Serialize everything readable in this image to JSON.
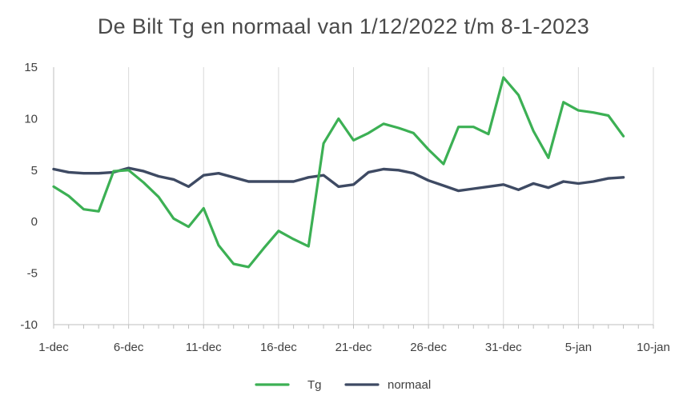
{
  "chart_data": {
    "type": "line",
    "title": "De Bilt Tg en normaal van 1/12/2022 t/m 8-1-2023",
    "xlabel": "",
    "ylabel": "",
    "x_ticks": [
      "1-dec",
      "6-dec",
      "11-dec",
      "16-dec",
      "21-dec",
      "26-dec",
      "31-dec",
      "5-jan",
      "10-jan"
    ],
    "x": [
      "1-dec",
      "2-dec",
      "3-dec",
      "4-dec",
      "5-dec",
      "6-dec",
      "7-dec",
      "8-dec",
      "9-dec",
      "10-dec",
      "11-dec",
      "12-dec",
      "13-dec",
      "14-dec",
      "15-dec",
      "16-dec",
      "17-dec",
      "18-dec",
      "19-dec",
      "20-dec",
      "21-dec",
      "22-dec",
      "23-dec",
      "24-dec",
      "25-dec",
      "26-dec",
      "27-dec",
      "28-dec",
      "29-dec",
      "30-dec",
      "31-dec",
      "1-jan",
      "2-jan",
      "3-jan",
      "4-jan",
      "5-jan",
      "6-jan",
      "7-jan",
      "8-jan"
    ],
    "y_ticks": [
      15,
      10,
      5,
      0,
      -5,
      -10
    ],
    "ylim": [
      -10,
      15
    ],
    "grid": "vertical",
    "legend_position": "bottom",
    "series": [
      {
        "name": "Tg",
        "color": "#3cb054",
        "values": [
          3.4,
          2.5,
          1.2,
          1.0,
          4.9,
          5.0,
          3.8,
          2.4,
          0.3,
          -0.5,
          1.3,
          -2.3,
          -4.1,
          -4.4,
          -2.6,
          -0.9,
          -1.7,
          -2.4,
          7.6,
          10.0,
          7.9,
          8.6,
          9.5,
          9.1,
          8.6,
          7.0,
          5.6,
          9.2,
          9.2,
          8.5,
          14.0,
          12.3,
          8.8,
          6.2,
          11.6,
          10.8,
          10.6,
          10.3,
          8.3
        ]
      },
      {
        "name": "normaal",
        "color": "#3e4a63",
        "values": [
          5.1,
          4.8,
          4.7,
          4.7,
          4.8,
          5.2,
          4.9,
          4.4,
          4.1,
          3.4,
          4.5,
          4.7,
          4.3,
          3.9,
          3.9,
          3.9,
          3.9,
          4.3,
          4.5,
          3.4,
          3.6,
          4.8,
          5.1,
          5.0,
          4.7,
          4.0,
          3.5,
          3.0,
          3.2,
          3.4,
          3.6,
          3.1,
          3.7,
          3.3,
          3.9,
          3.7,
          3.9,
          4.2,
          4.3
        ]
      }
    ]
  }
}
